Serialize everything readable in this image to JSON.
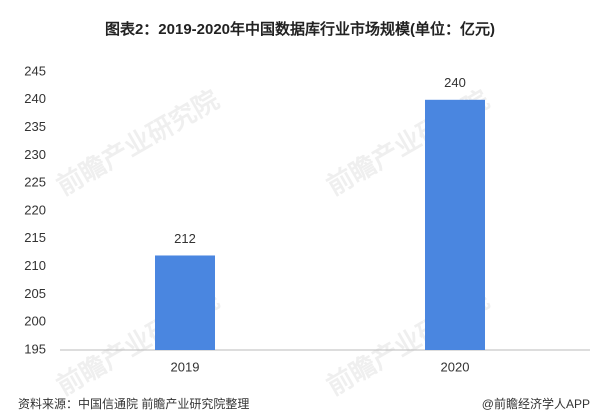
{
  "chart_data": {
    "type": "bar",
    "title": "图表2：2019-2020年中国数据库行业市场规模(单位：亿元)",
    "categories": [
      "2019",
      "2020"
    ],
    "values": [
      212,
      240
    ],
    "color": "#4a86e0",
    "ylim": [
      195,
      245
    ],
    "yticks": [
      195,
      200,
      205,
      210,
      215,
      220,
      225,
      230,
      235,
      240,
      245
    ],
    "grid": false,
    "source": "资料来源：中国信通院 前瞻产业研究院整理",
    "credit": "@前瞻经济学人APP",
    "watermark": "前瞻产业研究院"
  }
}
